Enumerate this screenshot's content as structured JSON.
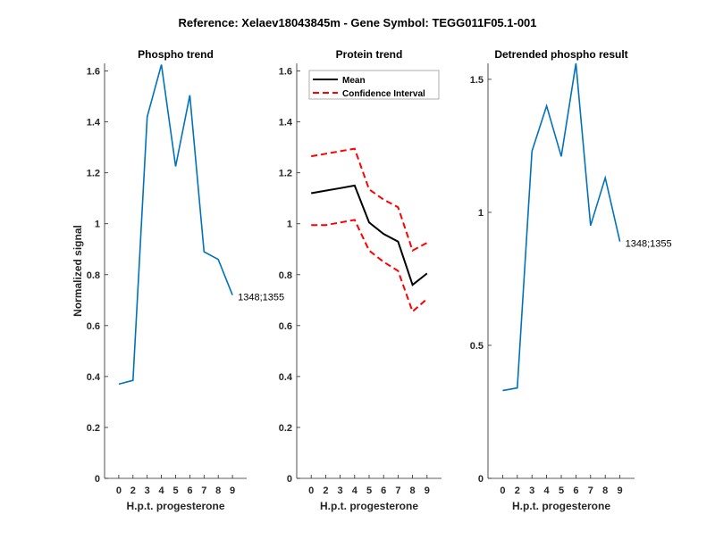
{
  "figure_title": "Reference:  Xelaev18043845m - Gene Symbol:  TEGG011F05.1-001",
  "colors": {
    "blue": "#0072BD",
    "black": "#000000",
    "red": "#FF0000",
    "axis": "#262626"
  },
  "chart_data": [
    {
      "type": "line",
      "title": "Phospho trend",
      "xlabel": "H.p.t. progesterone",
      "ylabel": "Normalized signal",
      "categories": [
        "0",
        "2",
        "3",
        "4",
        "5",
        "6",
        "7",
        "8",
        "9"
      ],
      "ylim": [
        0,
        1.63
      ],
      "yticks": [
        0,
        0.2,
        0.4,
        0.6,
        0.8,
        1,
        1.2,
        1.4,
        1.6
      ],
      "ytick_labels": [
        "0",
        "0.2",
        "0.4",
        "0.6",
        "0.8",
        "1",
        "1.2",
        "1.4",
        "1.6"
      ],
      "series": [
        {
          "name": "1348;1355",
          "color": "#0072BD",
          "style": "solid",
          "values": [
            0.37,
            0.385,
            1.42,
            1.625,
            1.225,
            1.505,
            0.89,
            0.86,
            0.72
          ]
        }
      ],
      "annotation": "1348;1355"
    },
    {
      "type": "line",
      "title": "Protein trend",
      "xlabel": "H.p.t. progesterone",
      "ylabel": "",
      "categories": [
        "0",
        "2",
        "3",
        "4",
        "5",
        "6",
        "7",
        "8",
        "9"
      ],
      "ylim": [
        0,
        1.63
      ],
      "yticks": [
        0,
        0.2,
        0.4,
        0.6,
        0.8,
        1,
        1.2,
        1.4,
        1.6
      ],
      "ytick_labels": [
        "0",
        "0.2",
        "0.4",
        "0.6",
        "0.8",
        "1",
        "1.2",
        "1.4",
        "1.6"
      ],
      "legend": {
        "placement": "top-left",
        "entries": [
          "Mean",
          "Confidence Interval"
        ]
      },
      "series": [
        {
          "name": "Mean",
          "color": "#000000",
          "style": "solid",
          "values": [
            1.12,
            1.13,
            1.14,
            1.15,
            1.005,
            0.96,
            0.93,
            0.76,
            0.805
          ]
        },
        {
          "name": "Confidence Interval",
          "color": "#FF0000",
          "style": "dashed",
          "values": [
            1.265,
            1.275,
            1.285,
            1.295,
            1.135,
            1.095,
            1.065,
            0.895,
            0.925
          ]
        },
        {
          "name": "Confidence Interval (lower)",
          "color": "#FF0000",
          "style": "dashed",
          "values": [
            0.995,
            0.995,
            1.005,
            1.015,
            0.895,
            0.85,
            0.815,
            0.655,
            0.705
          ]
        }
      ]
    },
    {
      "type": "line",
      "title": "Detrended phospho result",
      "xlabel": "H.p.t. progesterone",
      "ylabel": "",
      "categories": [
        "0",
        "2",
        "3",
        "4",
        "5",
        "6",
        "7",
        "8",
        "9"
      ],
      "ylim": [
        0,
        1.56
      ],
      "yticks": [
        0,
        0.5,
        1,
        1.5
      ],
      "ytick_labels": [
        "0",
        "0.5",
        "1",
        "1.5"
      ],
      "series": [
        {
          "name": "1348;1355",
          "color": "#0072BD",
          "style": "solid",
          "values": [
            0.33,
            0.34,
            1.23,
            1.4,
            1.21,
            1.56,
            0.95,
            1.13,
            0.89
          ]
        }
      ],
      "annotation": "1348;1355"
    }
  ]
}
